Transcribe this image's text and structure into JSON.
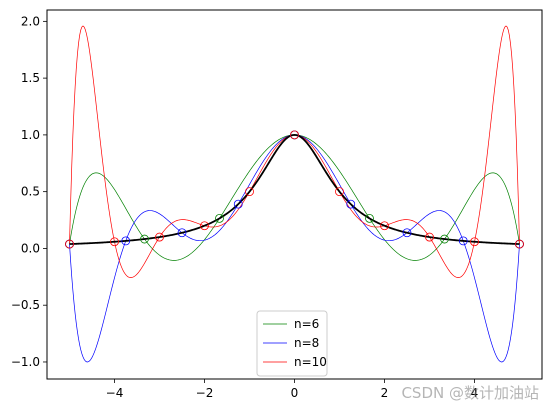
{
  "chart_data": {
    "type": "line",
    "title": "",
    "xlabel": "",
    "ylabel": "",
    "xlim": [
      -5.5,
      5.5
    ],
    "ylim": [
      -1.15,
      2.1
    ],
    "x_ticks": [
      -4,
      -2,
      0,
      2,
      4
    ],
    "x_tick_labels": [
      "−4",
      "−2",
      "0",
      "2",
      "4"
    ],
    "y_ticks": [
      -1.0,
      -0.5,
      0.0,
      0.5,
      1.0,
      1.5,
      2.0
    ],
    "y_tick_labels": [
      "−1.0",
      "−0.5",
      "0.0",
      "0.5",
      "1.0",
      "1.5",
      "2.0"
    ],
    "grid": false,
    "legend_position": "lower center",
    "function": "1/(1+x^2)",
    "domain": [
      -5,
      5
    ],
    "series": [
      {
        "name": "n=6",
        "color": "#008000",
        "nodes": 6
      },
      {
        "name": "n=8",
        "color": "#0000ff",
        "nodes": 8
      },
      {
        "name": "n=10",
        "color": "#ff0000",
        "nodes": 10
      },
      {
        "color": "#000000"
      }
    ]
  },
  "watermark": "CSDN @数计加油站"
}
